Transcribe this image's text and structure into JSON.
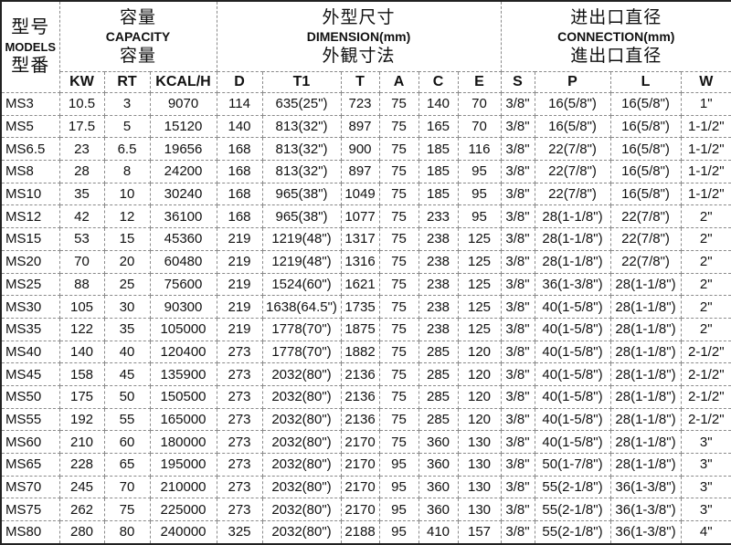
{
  "header": {
    "models": {
      "cn1": "型号",
      "en": "MODELS",
      "cn2": "型番"
    },
    "capacity": {
      "cn1": "容量",
      "en": "CAPACITY",
      "cn2": "容量"
    },
    "dimension": {
      "cn1": "外型尺寸",
      "en": "DIMENSION(mm)",
      "cn2": "外観寸法"
    },
    "connection": {
      "cn1": "进出口直径",
      "en": "CONNECTION(mm)",
      "cn2": "進出口直径"
    },
    "columns": [
      "KW",
      "RT",
      "KCAL/H",
      "D",
      "T1",
      "T",
      "A",
      "C",
      "E",
      "S",
      "P",
      "L",
      "W"
    ]
  },
  "rows": [
    [
      "MS3",
      "10.5",
      "3",
      "9070",
      "114",
      "635(25\")",
      "723",
      "75",
      "140",
      "70",
      "3/8\"",
      "16(5/8\")",
      "16(5/8\")",
      "1\""
    ],
    [
      "MS5",
      "17.5",
      "5",
      "15120",
      "140",
      "813(32\")",
      "897",
      "75",
      "165",
      "70",
      "3/8\"",
      "16(5/8\")",
      "16(5/8\")",
      "1-1/2\""
    ],
    [
      "MS6.5",
      "23",
      "6.5",
      "19656",
      "168",
      "813(32\")",
      "900",
      "75",
      "185",
      "116",
      "3/8\"",
      "22(7/8\")",
      "16(5/8\")",
      "1-1/2\""
    ],
    [
      "MS8",
      "28",
      "8",
      "24200",
      "168",
      "813(32\")",
      "897",
      "75",
      "185",
      "95",
      "3/8\"",
      "22(7/8\")",
      "16(5/8\")",
      "1-1/2\""
    ],
    [
      "MS10",
      "35",
      "10",
      "30240",
      "168",
      "965(38\")",
      "1049",
      "75",
      "185",
      "95",
      "3/8\"",
      "22(7/8\")",
      "16(5/8\")",
      "1-1/2\""
    ],
    [
      "MS12",
      "42",
      "12",
      "36100",
      "168",
      "965(38\")",
      "1077",
      "75",
      "233",
      "95",
      "3/8\"",
      "28(1-1/8\")",
      "22(7/8\")",
      "2\""
    ],
    [
      "MS15",
      "53",
      "15",
      "45360",
      "219",
      "1219(48\")",
      "1317",
      "75",
      "238",
      "125",
      "3/8\"",
      "28(1-1/8\")",
      "22(7/8\")",
      "2\""
    ],
    [
      "MS20",
      "70",
      "20",
      "60480",
      "219",
      "1219(48\")",
      "1316",
      "75",
      "238",
      "125",
      "3/8\"",
      "28(1-1/8\")",
      "22(7/8\")",
      "2\""
    ],
    [
      "MS25",
      "88",
      "25",
      "75600",
      "219",
      "1524(60\")",
      "1621",
      "75",
      "238",
      "125",
      "3/8\"",
      "36(1-3/8\")",
      "28(1-1/8\")",
      "2\""
    ],
    [
      "MS30",
      "105",
      "30",
      "90300",
      "219",
      "1638(64.5\")",
      "1735",
      "75",
      "238",
      "125",
      "3/8\"",
      "40(1-5/8\")",
      "28(1-1/8\")",
      "2\""
    ],
    [
      "MS35",
      "122",
      "35",
      "105000",
      "219",
      "1778(70\")",
      "1875",
      "75",
      "238",
      "125",
      "3/8\"",
      "40(1-5/8\")",
      "28(1-1/8\")",
      "2\""
    ],
    [
      "MS40",
      "140",
      "40",
      "120400",
      "273",
      "1778(70\")",
      "1882",
      "75",
      "285",
      "120",
      "3/8\"",
      "40(1-5/8\")",
      "28(1-1/8\")",
      "2-1/2\""
    ],
    [
      "MS45",
      "158",
      "45",
      "135900",
      "273",
      "2032(80\")",
      "2136",
      "75",
      "285",
      "120",
      "3/8\"",
      "40(1-5/8\")",
      "28(1-1/8\")",
      "2-1/2\""
    ],
    [
      "MS50",
      "175",
      "50",
      "150500",
      "273",
      "2032(80\")",
      "2136",
      "75",
      "285",
      "120",
      "3/8\"",
      "40(1-5/8\")",
      "28(1-1/8\")",
      "2-1/2\""
    ],
    [
      "MS55",
      "192",
      "55",
      "165000",
      "273",
      "2032(80\")",
      "2136",
      "75",
      "285",
      "120",
      "3/8\"",
      "40(1-5/8\")",
      "28(1-1/8\")",
      "2-1/2\""
    ],
    [
      "MS60",
      "210",
      "60",
      "180000",
      "273",
      "2032(80\")",
      "2170",
      "75",
      "360",
      "130",
      "3/8\"",
      "40(1-5/8\")",
      "28(1-1/8\")",
      "3\""
    ],
    [
      "MS65",
      "228",
      "65",
      "195000",
      "273",
      "2032(80\")",
      "2170",
      "95",
      "360",
      "130",
      "3/8\"",
      "50(1-7/8\")",
      "28(1-1/8\")",
      "3\""
    ],
    [
      "MS70",
      "245",
      "70",
      "210000",
      "273",
      "2032(80\")",
      "2170",
      "95",
      "360",
      "130",
      "3/8\"",
      "55(2-1/8\")",
      "36(1-3/8\")",
      "3\""
    ],
    [
      "MS75",
      "262",
      "75",
      "225000",
      "273",
      "2032(80\")",
      "2170",
      "95",
      "360",
      "130",
      "3/8\"",
      "55(2-1/8\")",
      "36(1-3/8\")",
      "3\""
    ],
    [
      "MS80",
      "280",
      "80",
      "240000",
      "325",
      "2032(80\")",
      "2188",
      "95",
      "410",
      "157",
      "3/8\"",
      "55(2-1/8\")",
      "36(1-3/8\")",
      "4\""
    ]
  ]
}
